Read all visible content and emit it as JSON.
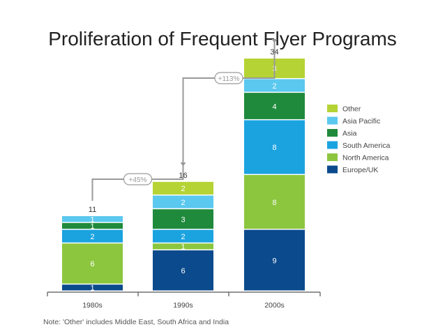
{
  "title": "Proliferation of Frequent Flyer Programs",
  "note": "Note: 'Other' includes Middle East, South Africa and India",
  "chart_data": {
    "type": "stacked-bar",
    "title": "Proliferation of Frequent Flyer Programs",
    "categories": [
      "1980s",
      "1990s",
      "2000s"
    ],
    "totals": [
      "11",
      "16",
      "34"
    ],
    "series": [
      {
        "name": "Europe/UK",
        "color": "#0b4a8c",
        "values": [
          1,
          6,
          9
        ]
      },
      {
        "name": "North America",
        "color": "#8cc63f",
        "values": [
          6,
          1,
          8
        ]
      },
      {
        "name": "South America",
        "color": "#1ba3e0",
        "values": [
          2,
          2,
          8
        ]
      },
      {
        "name": "Asia",
        "color": "#1f8a3c",
        "values": [
          1,
          3,
          4
        ]
      },
      {
        "name": "Asia Pacific",
        "color": "#5bc8ef",
        "values": [
          1,
          2,
          2
        ]
      },
      {
        "name": "Other",
        "color": "#b5d334",
        "values": [
          0,
          2,
          3
        ]
      }
    ],
    "legend_order": [
      "Other",
      "Asia Pacific",
      "Asia",
      "South America",
      "North America",
      "Europe/UK"
    ],
    "growth_labels": [
      "+45%",
      "+113%"
    ],
    "ylim": [
      0,
      34
    ]
  }
}
